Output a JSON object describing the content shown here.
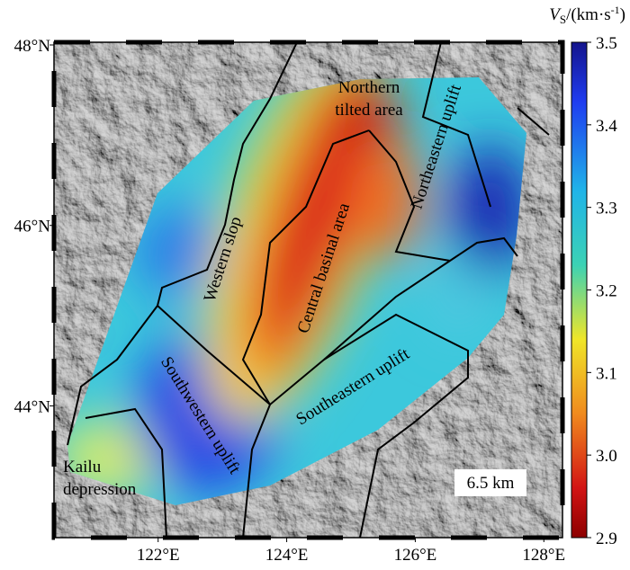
{
  "map": {
    "lon_lim": [
      120.38,
      128.29
    ],
    "lat_lim": [
      42.54,
      48.03
    ],
    "lon_ticks": [
      {
        "value": 122,
        "label": "122°E"
      },
      {
        "value": 124,
        "label": "124°E"
      },
      {
        "value": 126,
        "label": "126°E"
      },
      {
        "value": 128,
        "label": "128°E"
      }
    ],
    "lat_ticks": [
      {
        "value": 48,
        "label": "48°N"
      },
      {
        "value": 46,
        "label": "46°N"
      },
      {
        "value": 44,
        "label": "44°N"
      }
    ],
    "regions": [
      {
        "lines": [
          "Northern",
          "tilted area"
        ]
      },
      {
        "lines": [
          "Northeastern uplift"
        ]
      },
      {
        "lines": [
          "Western slop"
        ]
      },
      {
        "lines": [
          "Central basinal area"
        ]
      },
      {
        "lines": [
          "Southeastern uplift"
        ]
      },
      {
        "lines": [
          "Southwestern uplift"
        ]
      },
      {
        "lines": [
          "Kailu",
          "depression"
        ]
      }
    ],
    "depth_label": "6.5 km"
  },
  "colorbar": {
    "label_parts": [
      "V",
      "S",
      "/(km·s",
      "-1",
      ")"
    ],
    "lim": [
      2.9,
      3.5
    ],
    "ticks": [
      {
        "value": 3.5,
        "label": "3.5"
      },
      {
        "value": 3.4,
        "label": "3.4"
      },
      {
        "value": 3.3,
        "label": "3.3"
      },
      {
        "value": 3.2,
        "label": "3.2"
      },
      {
        "value": 3.1,
        "label": "3.1"
      },
      {
        "value": 3.0,
        "label": "3.0"
      },
      {
        "value": 2.9,
        "label": "2.9"
      }
    ]
  }
}
